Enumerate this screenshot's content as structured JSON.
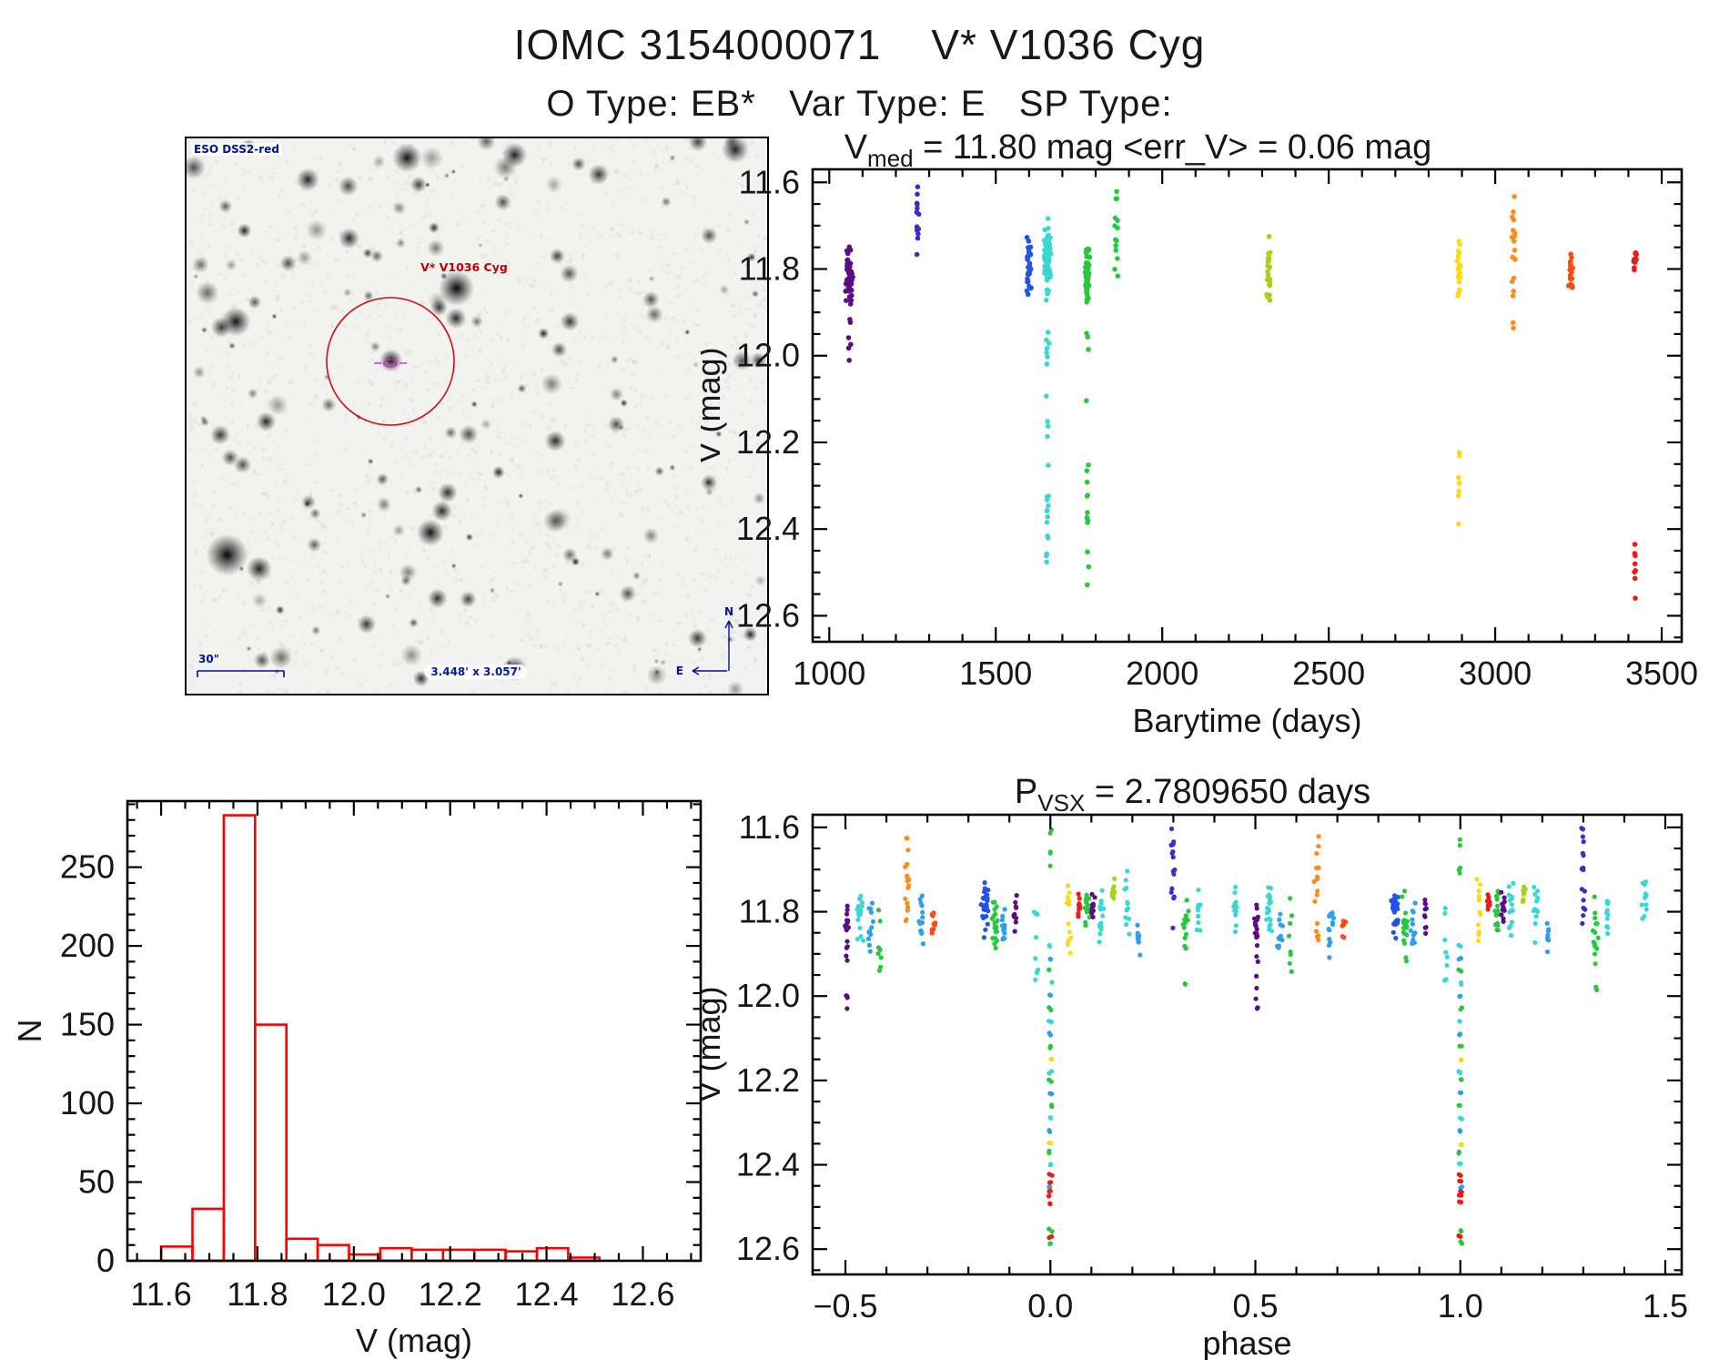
{
  "page": {
    "title": "IOMC 3154000071    V* V1036 Cyg",
    "subtitle": "O Type: EB*   Var Type: E   SP Type:",
    "background": "#ffffff"
  },
  "palette": {
    "purple": "#5a0d86",
    "indigo": "#4628c8",
    "blue": "#2153e8",
    "skyblue": "#2e9ff0",
    "cyan": "#3bd7d2",
    "green": "#27c83c",
    "yellowgreen": "#a6d415",
    "yellow": "#ffd914",
    "orange": "#ff8c1a",
    "orangered": "#fe4a0e",
    "red": "#ed1c1c",
    "axis": "#000000",
    "text": "#161616",
    "hist_red": "#ff0000",
    "annotation_blue": "#001292",
    "marker_red": "#cf0f0f",
    "marker_magenta": "#cc22cc"
  },
  "starfield": {
    "survey_label": "ESO DSS2-red",
    "star_label": "V* V1036 Cyg",
    "scale_label": "30\"",
    "fov_label": "3.448' x 3.057'",
    "compass_north": "N",
    "compass_east": "E"
  },
  "chart_data": [
    {
      "id": "barytime",
      "type": "scatter",
      "title": "V_med = 11.80 mag <err_V> = 0.06 mag",
      "title_parts": [
        {
          "t": "V"
        },
        {
          "t": "med",
          "sub": true
        },
        {
          "t": "  =  11.80 mag  <err_V>  =  0.06 mag"
        }
      ],
      "xlabel": "Barytime (days)",
      "ylabel": "V (mag)",
      "xlim": [
        950,
        3560
      ],
      "ylim": [
        11.57,
        12.66
      ],
      "y_inverted_magnitude_axis": true,
      "xticks": [
        1000,
        1500,
        2000,
        2500,
        3000,
        3500
      ],
      "xtick_labels": [
        "1000",
        "1500",
        "2000",
        "2500",
        "3000",
        "3500"
      ],
      "yticks": [
        11.6,
        11.8,
        12.0,
        12.2,
        12.4,
        12.6
      ],
      "ytick_labels": [
        "11.6",
        "11.8",
        "12.0",
        "12.2",
        "12.4",
        "12.6"
      ],
      "x_minor": 100,
      "y_minor": 0.05,
      "grid": false,
      "clusters": [
        {
          "x": 1060,
          "dx": 14,
          "color": "purple",
          "n": 46,
          "y": [
            11.74,
            11.9
          ],
          "tail": [
            11.91,
            12.03
          ],
          "tn": 6
        },
        {
          "x": 1265,
          "dx": 5,
          "color": "indigo",
          "n": 13,
          "y": [
            11.6,
            11.77
          ],
          "uniform": true
        },
        {
          "x": 1600,
          "dx": 8,
          "color": "blue",
          "n": 32,
          "y": [
            11.72,
            11.87
          ]
        },
        {
          "x": 1655,
          "dx": 12,
          "color": "cyan",
          "n": 75,
          "y": [
            11.68,
            11.89
          ],
          "tail": [
            11.91,
            12.48
          ],
          "tn": 26
        },
        {
          "x": 1775,
          "dx": 9,
          "color": "green",
          "n": 48,
          "y": [
            11.72,
            11.9
          ],
          "tail": [
            11.93,
            12.58
          ],
          "tn": 16
        },
        {
          "x": 1862,
          "dx": 6,
          "color": "green",
          "n": 14,
          "y": [
            11.6,
            11.82
          ],
          "uniform": true
        },
        {
          "x": 2320,
          "dx": 7,
          "color": "yellowgreen",
          "n": 24,
          "y": [
            11.71,
            11.93
          ]
        },
        {
          "x": 2890,
          "dx": 7,
          "color": "yellow",
          "n": 22,
          "y": [
            11.72,
            11.88
          ],
          "tail": [
            12.18,
            12.4
          ],
          "tn": 7
        },
        {
          "x": 3055,
          "dx": 7,
          "color": "orange",
          "n": 18,
          "y": [
            11.62,
            11.94
          ],
          "uniform": true
        },
        {
          "x": 3228,
          "dx": 8,
          "color": "orangered",
          "n": 22,
          "y": [
            11.75,
            11.88
          ]
        },
        {
          "x": 3420,
          "dx": 6,
          "color": "red",
          "n": 14,
          "y": [
            11.75,
            11.81
          ],
          "tail": [
            12.43,
            12.56
          ],
          "tn": 8
        }
      ]
    },
    {
      "id": "histogram",
      "type": "bar",
      "title": "",
      "xlabel": "V (mag)",
      "ylabel": "N",
      "xlim": [
        11.53,
        12.72
      ],
      "ylim": [
        292,
        0
      ],
      "xticks": [
        11.6,
        11.8,
        12.0,
        12.2,
        12.4,
        12.6
      ],
      "xtick_labels": [
        "11.6",
        "11.8",
        "12.0",
        "12.2",
        "12.4",
        "12.6"
      ],
      "yticks": [
        0,
        50,
        100,
        150,
        200,
        250
      ],
      "ytick_labels": [
        "0",
        "50",
        "100",
        "150",
        "200",
        "250"
      ],
      "x_minor": 0.05,
      "y_minor": 10,
      "grid": false,
      "bin_start": 11.6,
      "bin_width": 0.065,
      "values": [
        9,
        33,
        283,
        150,
        14,
        10,
        4,
        8,
        7,
        7,
        7,
        6,
        8,
        2
      ],
      "bar_color": "#ff0000"
    },
    {
      "id": "phase",
      "type": "scatter",
      "title": "P_VSX = 2.7809650 days",
      "title_parts": [
        {
          "t": "P"
        },
        {
          "t": "VSX",
          "sub": true
        },
        {
          "t": "  =  2.7809650 days"
        }
      ],
      "xlabel": "phase",
      "ylabel": "V (mag)",
      "xlim": [
        -0.58,
        1.54
      ],
      "ylim": [
        11.57,
        12.66
      ],
      "y_inverted_magnitude_axis": true,
      "xticks": [
        -0.5,
        0.0,
        0.5,
        1.0,
        1.5
      ],
      "xtick_labels": [
        "−0.5",
        "0.0",
        "0.5",
        "1.0",
        "1.5"
      ],
      "yticks": [
        11.6,
        11.8,
        12.0,
        12.2,
        12.4,
        12.6
      ],
      "ytick_labels": [
        "11.6",
        "11.8",
        "12.0",
        "12.2",
        "12.4",
        "12.6"
      ],
      "x_minor": 0.1,
      "y_minor": 0.05,
      "grid": false,
      "mirror_offset": 1.0,
      "base_clusters": [
        {
          "p": -0.497,
          "dp": 0.006,
          "color": "purple",
          "n": 16,
          "y": [
            11.76,
            11.93
          ],
          "tail": [
            11.95,
            12.03
          ],
          "tn": 5
        },
        {
          "p": -0.465,
          "dp": 0.01,
          "color": "cyan",
          "n": 20,
          "y": [
            11.71,
            11.89
          ]
        },
        {
          "p": -0.44,
          "dp": 0.008,
          "color": "skyblue",
          "n": 12,
          "y": [
            11.77,
            11.92
          ]
        },
        {
          "p": -0.415,
          "dp": 0.006,
          "color": "green",
          "n": 8,
          "y": [
            11.74,
            11.95
          ],
          "uniform": true
        },
        {
          "p": -0.35,
          "dp": 0.007,
          "color": "orange",
          "n": 17,
          "y": [
            11.62,
            11.88
          ],
          "uniform": true
        },
        {
          "p": -0.315,
          "dp": 0.008,
          "color": "skyblue",
          "n": 14,
          "y": [
            11.76,
            11.91
          ]
        },
        {
          "p": -0.285,
          "dp": 0.006,
          "color": "orangered",
          "n": 10,
          "y": [
            11.79,
            11.87
          ]
        },
        {
          "p": -0.16,
          "dp": 0.01,
          "color": "blue",
          "n": 28,
          "y": [
            11.72,
            11.87
          ]
        },
        {
          "p": -0.135,
          "dp": 0.008,
          "color": "green",
          "n": 20,
          "y": [
            11.74,
            11.94
          ]
        },
        {
          "p": -0.115,
          "dp": 0.007,
          "color": "skyblue",
          "n": 12,
          "y": [
            11.77,
            11.91
          ]
        },
        {
          "p": -0.085,
          "dp": 0.006,
          "color": "purple",
          "n": 10,
          "y": [
            11.75,
            11.86
          ]
        },
        {
          "p": -0.035,
          "dp": 0.005,
          "color": "cyan",
          "n": 8,
          "y": [
            11.79,
            11.97
          ],
          "uniform": true
        },
        {
          "p": 0.0,
          "dp": 0.004,
          "color": "green",
          "n": 5,
          "y": [
            11.6,
            11.72
          ],
          "uniform": true
        },
        {
          "p": 0.045,
          "dp": 0.006,
          "color": "yellow",
          "n": 12,
          "y": [
            11.72,
            11.9
          ],
          "uniform": true
        },
        {
          "p": 0.07,
          "dp": 0.005,
          "color": "red",
          "n": 9,
          "y": [
            11.74,
            11.82
          ]
        },
        {
          "p": 0.09,
          "dp": 0.007,
          "color": "green",
          "n": 16,
          "y": [
            11.73,
            11.86
          ]
        },
        {
          "p": 0.105,
          "dp": 0.006,
          "color": "purple",
          "n": 12,
          "y": [
            11.74,
            11.84
          ]
        },
        {
          "p": 0.125,
          "dp": 0.008,
          "color": "cyan",
          "n": 14,
          "y": [
            11.72,
            11.88
          ]
        },
        {
          "p": 0.155,
          "dp": 0.005,
          "color": "yellowgreen",
          "n": 8,
          "y": [
            11.71,
            11.81
          ]
        },
        {
          "p": 0.185,
          "dp": 0.008,
          "color": "cyan",
          "n": 12,
          "y": [
            11.7,
            11.89
          ]
        },
        {
          "p": 0.215,
          "dp": 0.006,
          "color": "skyblue",
          "n": 9,
          "y": [
            11.8,
            11.93
          ]
        },
        {
          "p": 0.3,
          "dp": 0.007,
          "color": "indigo",
          "n": 16,
          "y": [
            11.59,
            11.84
          ],
          "uniform": true
        },
        {
          "p": 0.33,
          "dp": 0.007,
          "color": "green",
          "n": 15,
          "y": [
            11.72,
            11.94
          ],
          "tail": [
            11.97,
            12.01
          ],
          "tn": 2
        },
        {
          "p": 0.36,
          "dp": 0.006,
          "color": "cyan",
          "n": 10,
          "y": [
            11.74,
            11.87
          ]
        },
        {
          "p": 0.45,
          "dp": 0.008,
          "color": "cyan",
          "n": 12,
          "y": [
            11.7,
            11.86
          ]
        }
      ],
      "eclipse": {
        "phases": [
          0.0,
          1.0
        ],
        "depth_mag": 12.58,
        "points": [
          [
            11.88,
            "cyan"
          ],
          [
            11.91,
            "skyblue"
          ],
          [
            11.94,
            "green"
          ],
          [
            11.97,
            "cyan"
          ],
          [
            12.0,
            "skyblue"
          ],
          [
            12.03,
            "green"
          ],
          [
            12.06,
            "cyan"
          ],
          [
            12.09,
            "skyblue"
          ],
          [
            12.12,
            "green"
          ],
          [
            12.15,
            "yellow"
          ],
          [
            12.18,
            "cyan"
          ],
          [
            12.2,
            "green"
          ],
          [
            12.23,
            "skyblue"
          ],
          [
            12.26,
            "green"
          ],
          [
            12.29,
            "cyan"
          ],
          [
            12.32,
            "skyblue"
          ],
          [
            12.35,
            "yellow"
          ],
          [
            12.37,
            "green"
          ],
          [
            12.4,
            "cyan"
          ],
          [
            12.425,
            "red"
          ],
          [
            12.44,
            "red"
          ],
          [
            12.455,
            "skyblue"
          ],
          [
            12.465,
            "red"
          ],
          [
            12.475,
            "red"
          ],
          [
            12.49,
            "red"
          ],
          [
            12.555,
            "green"
          ],
          [
            12.57,
            "red"
          ],
          [
            12.585,
            "green"
          ]
        ]
      }
    }
  ]
}
